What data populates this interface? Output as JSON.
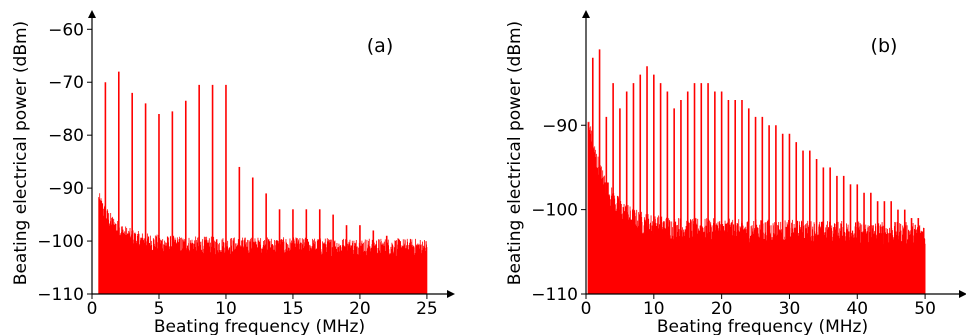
{
  "chart_data": [
    {
      "type": "line",
      "panel_label": "(a)",
      "xlabel": "Beating frequency (MHz)",
      "ylabel": "Beating electrical power (dBm)",
      "xlim": [
        0,
        26.5
      ],
      "ylim": [
        -110,
        -59
      ],
      "xticks": [
        0,
        5,
        10,
        15,
        20,
        25
      ],
      "yticks": [
        -110,
        -100,
        -90,
        -80,
        -70,
        -60
      ],
      "color": "#ff0000",
      "noise_floor": {
        "x": [
          0.5,
          25
        ],
        "mean": [
          -96,
          -104.5
        ],
        "spread": 5
      },
      "peaks": {
        "x": [
          1,
          2,
          3,
          4,
          5,
          6,
          7,
          8,
          9,
          10,
          11,
          12,
          13,
          14,
          15,
          16,
          17,
          18,
          19,
          20,
          21,
          22,
          23,
          24
        ],
        "y": [
          -70,
          -68,
          -72,
          -74,
          -76,
          -75.5,
          -73.5,
          -70.5,
          -70.5,
          -70.5,
          -86,
          -88,
          -91,
          -94,
          -94,
          -94,
          -94,
          -95,
          -97,
          -97,
          -98,
          -99,
          -100,
          -101
        ]
      }
    },
    {
      "type": "line",
      "panel_label": "(b)",
      "xlabel": "Beating frequency (MHz)",
      "ylabel": "Beating electrical power (dBm)",
      "xlim": [
        0,
        55
      ],
      "ylim": [
        -110,
        -78
      ],
      "xticks": [
        0,
        10,
        20,
        30,
        40,
        50
      ],
      "yticks": [
        -110,
        -100,
        -90
      ],
      "color": "#ff0000",
      "noise_floor": {
        "x": [
          0.3,
          50
        ],
        "mean": [
          -93,
          -105.5
        ],
        "spread": 4
      },
      "peaks": {
        "x": [
          1,
          2,
          3,
          4,
          5,
          6,
          7,
          8,
          9,
          10,
          11,
          12,
          13,
          14,
          15,
          16,
          17,
          18,
          19,
          20,
          21,
          22,
          23,
          24,
          25,
          26,
          27,
          28,
          29,
          30,
          31,
          32,
          33,
          34,
          35,
          36,
          37,
          38,
          39,
          40,
          41,
          42,
          43,
          44,
          45,
          46,
          47,
          48,
          49
        ],
        "y": [
          -82,
          -81,
          -89,
          -85,
          -88,
          -86,
          -85,
          -84,
          -83,
          -84,
          -85,
          -86,
          -88,
          -87,
          -86,
          -85,
          -85,
          -85,
          -86,
          -86,
          -87,
          -87,
          -87,
          -88,
          -89,
          -89,
          -90,
          -90,
          -91,
          -91,
          -92,
          -93,
          -93,
          -94,
          -95,
          -95,
          -96,
          -96,
          -97,
          -97,
          -98,
          -98,
          -99,
          -99,
          -99,
          -100,
          -100,
          -101,
          -101
        ]
      }
    }
  ]
}
